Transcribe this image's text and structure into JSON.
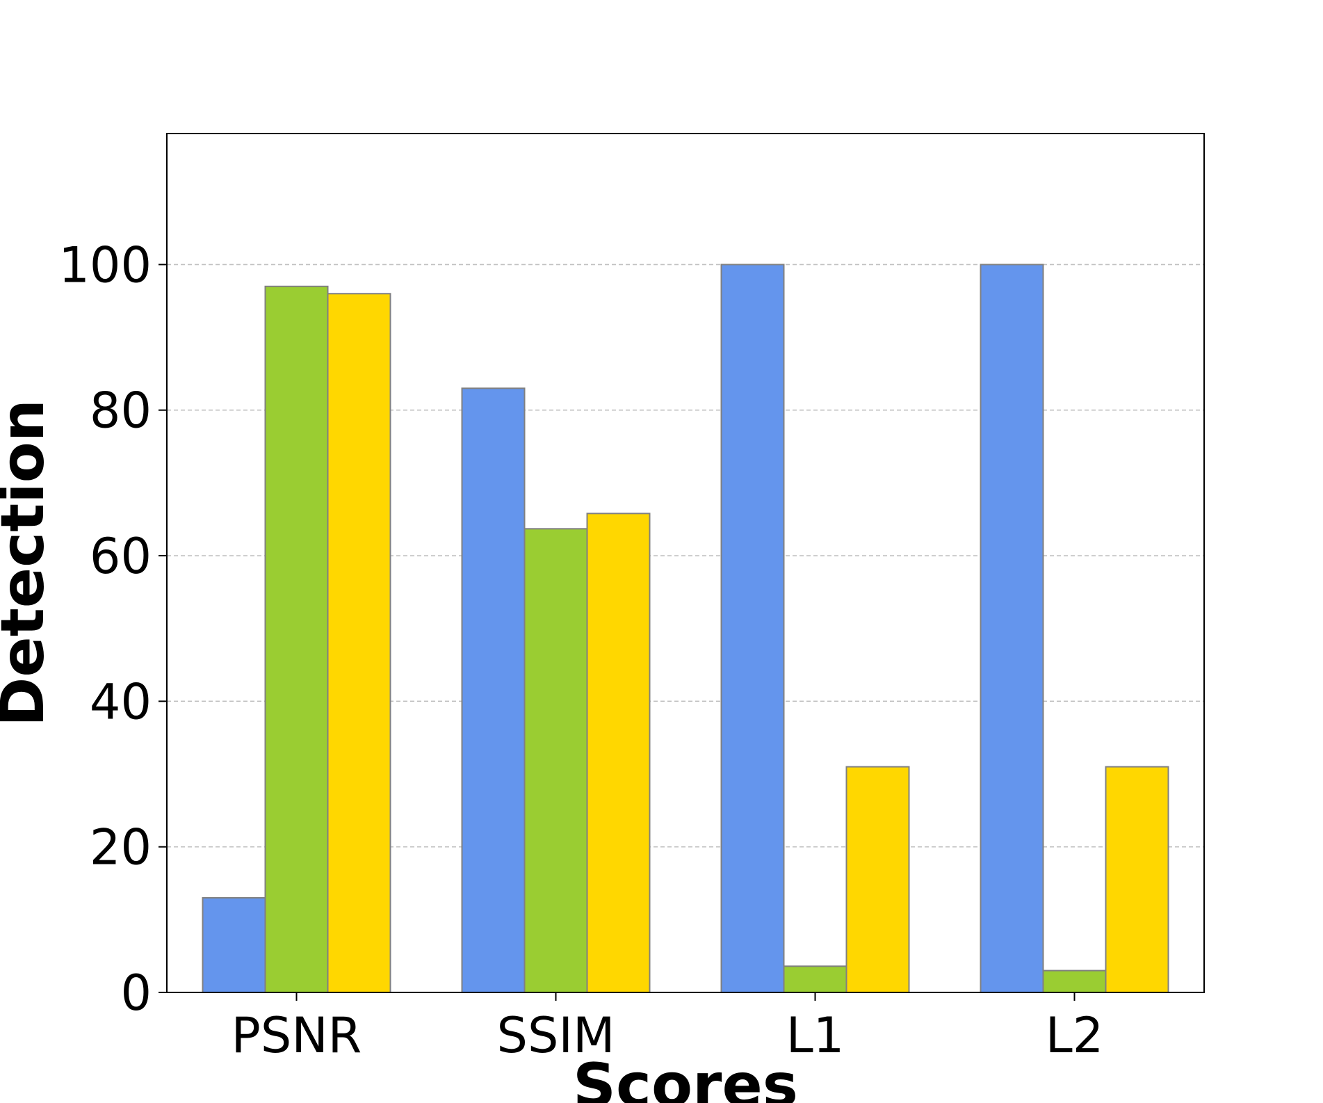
{
  "chart_data": {
    "type": "bar",
    "title": "",
    "xlabel": "Scores",
    "ylabel": "Detection",
    "categories": [
      "PSNR",
      "SSIM",
      "L1",
      "L2"
    ],
    "series": [
      {
        "values": [
          13,
          83,
          100,
          100
        ]
      },
      {
        "values": [
          97,
          63.7,
          3.6,
          3
        ]
      },
      {
        "values": [
          96,
          65.8,
          31,
          31
        ]
      }
    ],
    "colors": [
      "#6495ED",
      "#9ACD32",
      "#FFD700"
    ],
    "bar_edge_color": "#808080",
    "grid_color": "#c0c0c0",
    "ylim": [
      0,
      118
    ],
    "yticks": [
      0,
      20,
      40,
      60,
      80,
      100
    ],
    "grid": "horizontal-dashed",
    "legend": "none"
  }
}
